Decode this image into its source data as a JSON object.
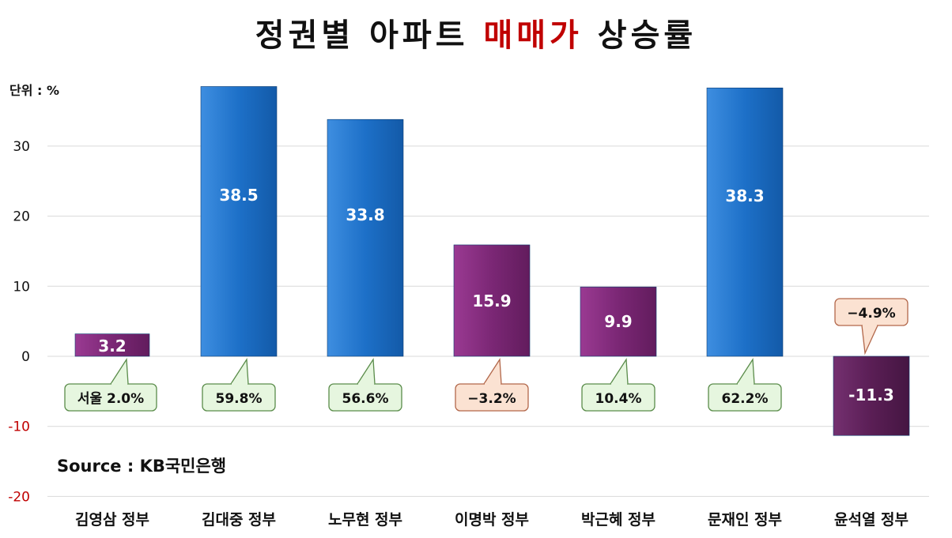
{
  "chart_data": {
    "type": "bar",
    "title": {
      "prefix": "정권별 아파트 ",
      "highlight": "매매가",
      "suffix": " 상승률"
    },
    "unit_label": "단위 : %",
    "source_label": "Source : KB국민은행",
    "categories": [
      "김영삼 정부",
      "김대중 정부",
      "노무현 정부",
      "이명박 정부",
      "박근혜 정부",
      "문재인 정부",
      "윤석열 정부"
    ],
    "values": [
      3.2,
      38.5,
      33.8,
      15.9,
      9.9,
      38.3,
      -11.3
    ],
    "value_labels": [
      "3.2",
      "38.5",
      "33.8",
      "15.9",
      "9.9",
      "38.3",
      "-11.3"
    ],
    "seoul_callouts": [
      {
        "text": "서울 2.0%",
        "tone": "up"
      },
      {
        "text": "59.8%",
        "tone": "up"
      },
      {
        "text": "56.6%",
        "tone": "up"
      },
      {
        "text": "−3.2%",
        "tone": "down"
      },
      {
        "text": "10.4%",
        "tone": "up"
      },
      {
        "text": "62.2%",
        "tone": "up"
      },
      {
        "text": "−4.9%",
        "tone": "down"
      }
    ],
    "bar_colors": [
      "purple",
      "blue",
      "blue",
      "purple",
      "purple",
      "blue",
      "dark-purple"
    ],
    "yticks": [
      {
        "value": 30,
        "label": "30"
      },
      {
        "value": 20,
        "label": "20"
      },
      {
        "value": 10,
        "label": "10"
      },
      {
        "value": 0,
        "label": "0"
      },
      {
        "value": -10,
        "label": "-10"
      },
      {
        "value": -20,
        "label": "-20"
      }
    ],
    "ylim": [
      -20,
      38
    ],
    "grid": true,
    "colors": {
      "blue": "#1d70c8",
      "purple": "#7b2775",
      "dark-purple": "#5a1e55",
      "callout_up_fill": "#e6f6df",
      "callout_up_stroke": "#5a8c4a",
      "callout_down_fill": "#fbe2d2",
      "callout_down_stroke": "#b2674a",
      "title_accent": "#c00000",
      "negative_tick": "#c00000"
    }
  }
}
